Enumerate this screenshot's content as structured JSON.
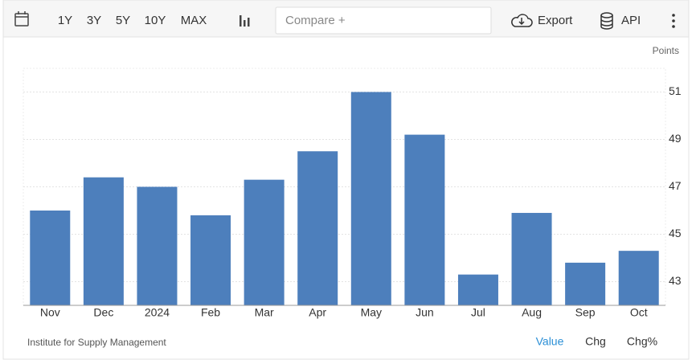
{
  "toolbar": {
    "ranges": [
      "1Y",
      "3Y",
      "5Y",
      "10Y",
      "MAX"
    ],
    "compare": "Compare +",
    "export": "Export",
    "api": "API"
  },
  "chart_data": {
    "type": "bar",
    "y_label": "Points",
    "categories": [
      "Nov",
      "Dec",
      "2024",
      "Feb",
      "Mar",
      "Apr",
      "May",
      "Jun",
      "Jul",
      "Aug",
      "Sep",
      "Oct"
    ],
    "values": [
      46.0,
      47.4,
      47.0,
      45.8,
      47.3,
      48.5,
      51.0,
      49.2,
      43.3,
      45.9,
      43.8,
      44.3
    ],
    "color": "#4d7fbc",
    "ylim": [
      42,
      52
    ],
    "yticks": [
      43,
      45,
      47,
      49,
      51
    ],
    "grid": true
  },
  "footer": {
    "source": "Institute for Supply Management",
    "tabs": [
      "Value",
      "Chg",
      "Chg%"
    ]
  }
}
